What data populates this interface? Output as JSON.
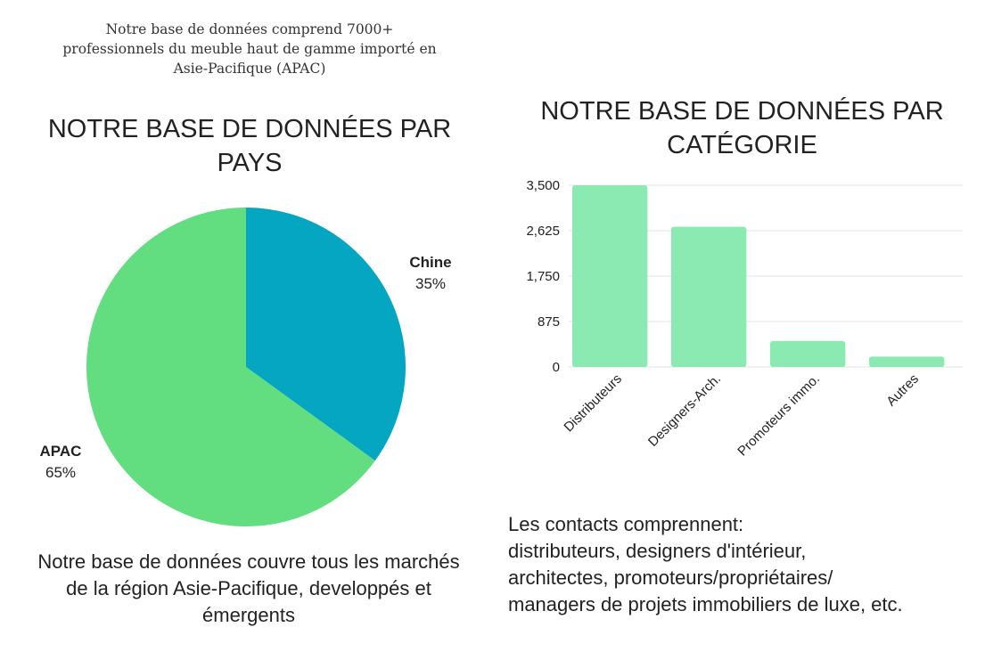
{
  "header": {
    "lines": [
      "Notre base de données comprend 7000+",
      "professionnels du meuble haut de gamme importé en",
      "Asie-Pacifique (APAC)"
    ]
  },
  "colors": {
    "pie_primary": "#62dd80",
    "pie_secondary": "#04a6c2",
    "bar_fill": "#8be9b2",
    "gridline": "#e3e3e3"
  },
  "chart_data": [
    {
      "type": "pie",
      "title": "NOTRE BASE DE DONNÉES PAR PAYS",
      "title_lines": [
        "NOTRE BASE DE DONNÉES PAR",
        "PAYS"
      ],
      "slices": [
        {
          "label": "Chine",
          "value": 35,
          "display": "35%",
          "color": "#04a6c2"
        },
        {
          "label": "APAC",
          "value": 65,
          "display": "65%",
          "color": "#62dd80"
        }
      ]
    },
    {
      "type": "bar",
      "title": "NOTRE BASE DE DONNÉES PAR CATÉGORIE",
      "title_lines": [
        "NOTRE BASE DE DONNÉES PAR",
        "CATÉGORIE"
      ],
      "categories": [
        "Distributeurs",
        "Designers-Arch.",
        "Promoteurs immo.",
        "Autres"
      ],
      "values": [
        3500,
        2700,
        500,
        200
      ],
      "ylim": [
        0,
        3500
      ],
      "yticks": [
        0,
        875,
        1750,
        2625,
        3500
      ],
      "ytick_labels": [
        "0",
        "875",
        "1,750",
        "2,625",
        "3,500"
      ],
      "grid": true,
      "xlabel": "",
      "ylabel": ""
    }
  ],
  "notes": {
    "pie_note_lines": [
      "Notre base de données couvre tous les marchés",
      "de la région Asie-Pacifique, developpés et",
      "émergents"
    ],
    "bar_note_lines": [
      "Les contacts comprennent:",
      "distributeurs, designers d'intérieur,",
      "architectes, promoteurs/propriétaires/",
      "managers de projets immobiliers de luxe, etc."
    ]
  }
}
